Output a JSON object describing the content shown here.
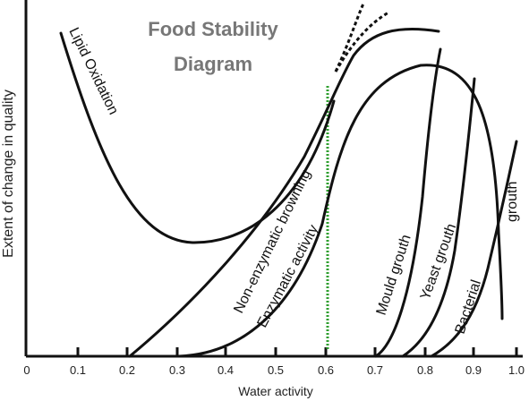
{
  "title": {
    "line1": "Food Stability",
    "line2": "Diagram"
  },
  "axes": {
    "xlabel": "Water activity",
    "ylabel": "Extent of change in quality",
    "xticks": [
      "0",
      "0.1",
      "0.2",
      "0.3",
      "0.4",
      "0.5",
      "0.6",
      "0.7",
      "0.8",
      "0.9",
      "1.0"
    ]
  },
  "curves": {
    "lipid": "Lipid Oxidation",
    "nonenzymatic": "Non-enzymatic browning",
    "enzymatic": "Enzymatic activity",
    "mould": "Mould grouth",
    "yeast": "Yeast grouth",
    "bacterial_1": "Bacterial",
    "bacterial_2": "grouth"
  },
  "marker": {
    "x": 0.6,
    "color": "#2e9e2e"
  }
}
